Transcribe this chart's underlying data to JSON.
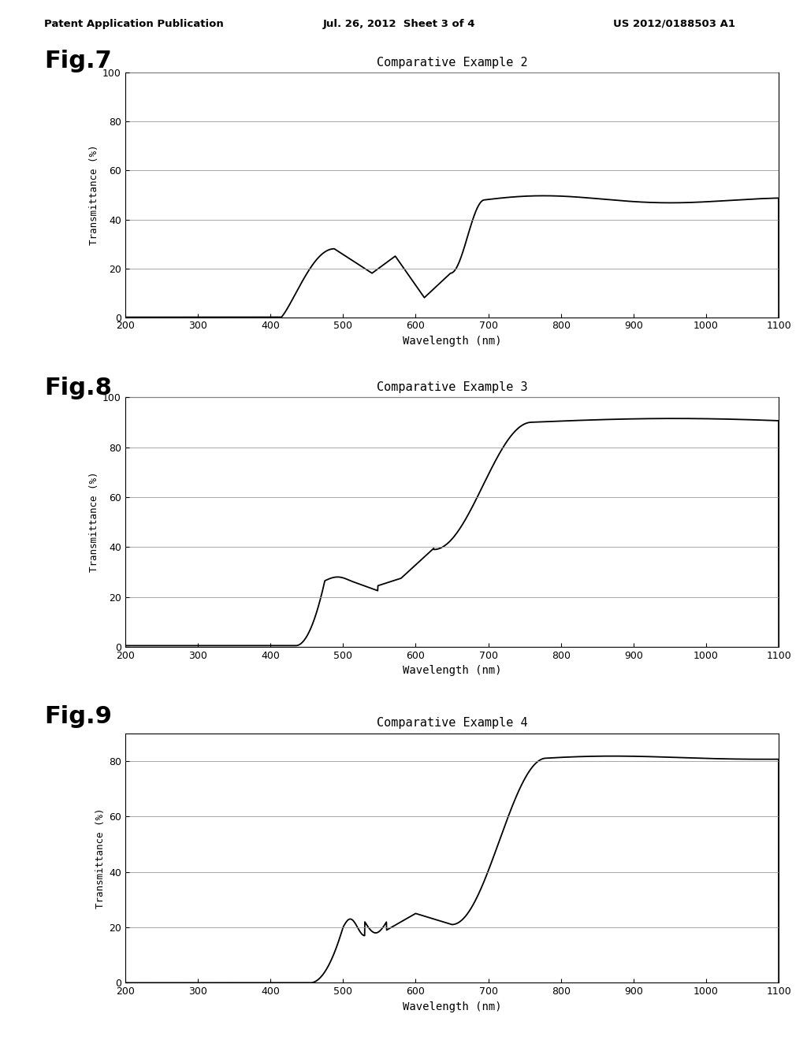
{
  "fig7_title": "Comparative Example 2",
  "fig8_title": "Comparative Example 3",
  "fig9_title": "Comparative Example 4",
  "fig7_label": "Fig.7",
  "fig8_label": "Fig.8",
  "fig9_label": "Fig.9",
  "xlabel": "Wavelength (nm)",
  "ylabel": "Transmittance (%)",
  "xlim": [
    200,
    1100
  ],
  "ylim7": [
    0,
    100
  ],
  "ylim8": [
    0,
    100
  ],
  "ylim9": [
    0,
    90
  ],
  "yticks7": [
    0,
    20,
    40,
    60,
    80,
    100
  ],
  "yticks8": [
    0,
    20,
    40,
    60,
    80,
    100
  ],
  "yticks9": [
    0,
    20,
    40,
    60,
    80
  ],
  "xticks": [
    200,
    300,
    400,
    500,
    600,
    700,
    800,
    900,
    1000,
    1100
  ],
  "background_color": "#ffffff",
  "line_color": "#000000",
  "grid_color": "#999999",
  "header_left": "Patent Application Publication",
  "header_mid": "Jul. 26, 2012  Sheet 3 of 4",
  "header_right": "US 2012/0188503 A1"
}
